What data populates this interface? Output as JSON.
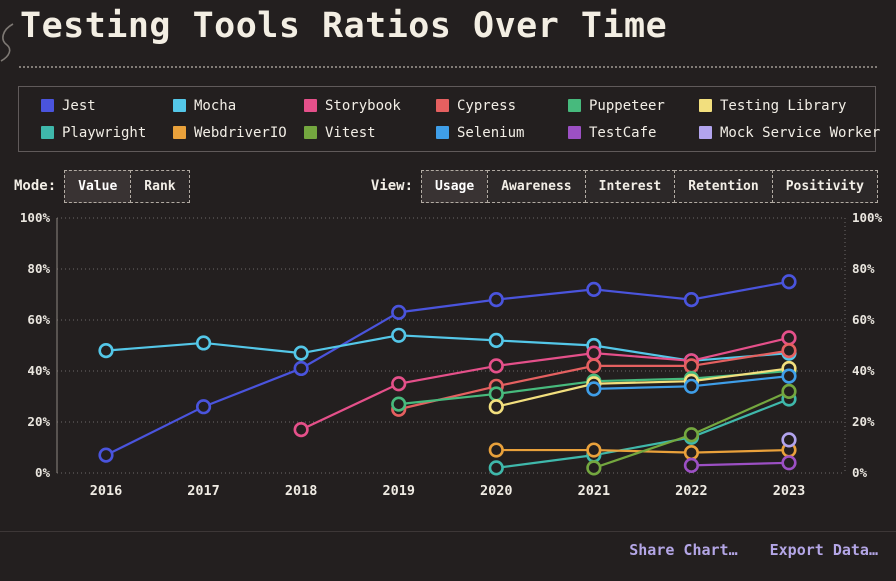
{
  "page": {
    "title": "Testing Tools Ratios Over Time"
  },
  "controls": {
    "mode_label": "Mode:",
    "mode_buttons": [
      "Value",
      "Rank"
    ],
    "mode_active": "Value",
    "view_label": "View:",
    "view_buttons": [
      "Usage",
      "Awareness",
      "Interest",
      "Retention",
      "Positivity"
    ],
    "view_active": "Usage"
  },
  "footer": {
    "share_label": "Share Chart…",
    "export_label": "Export Data…",
    "link_color": "#b4a6e6"
  },
  "chart_data": {
    "type": "line",
    "title": "Testing Tools Ratios Over Time",
    "x": [
      "2016",
      "2017",
      "2018",
      "2019",
      "2020",
      "2021",
      "2022",
      "2023"
    ],
    "y_ticks": [
      0,
      20,
      40,
      60,
      80,
      100
    ],
    "ylim": [
      0,
      100
    ],
    "unit": "%",
    "grid": "dotted-horizontal",
    "dual_y_axis": true,
    "legend_position": "top-box",
    "point_style": "hollow-circle",
    "background_color": "#231f1f",
    "series": [
      {
        "name": "Jest",
        "color": "#4a54dd",
        "values": [
          7,
          26,
          41,
          63,
          68,
          72,
          68,
          75
        ]
      },
      {
        "name": "Mocha",
        "color": "#54c7e8",
        "values": [
          48,
          51,
          47,
          54,
          52,
          50,
          44,
          47
        ]
      },
      {
        "name": "Storybook",
        "color": "#e5508a",
        "values": [
          null,
          null,
          17,
          35,
          42,
          47,
          44,
          53
        ]
      },
      {
        "name": "Cypress",
        "color": "#e56060",
        "values": [
          null,
          null,
          null,
          25,
          34,
          42,
          42,
          48
        ]
      },
      {
        "name": "Puppeteer",
        "color": "#47ba7d",
        "values": [
          null,
          null,
          null,
          27,
          31,
          36,
          37,
          40
        ]
      },
      {
        "name": "Testing Library",
        "color": "#f2df7e",
        "values": [
          null,
          null,
          null,
          null,
          26,
          35,
          36,
          41
        ]
      },
      {
        "name": "Playwright",
        "color": "#3fb8ab",
        "values": [
          null,
          null,
          null,
          null,
          2,
          7,
          14,
          29
        ]
      },
      {
        "name": "WebdriverIO",
        "color": "#e9a13b",
        "values": [
          null,
          null,
          null,
          null,
          9,
          9,
          8,
          9
        ]
      },
      {
        "name": "Vitest",
        "color": "#74a73f",
        "values": [
          null,
          null,
          null,
          null,
          null,
          2,
          15,
          32
        ]
      },
      {
        "name": "Selenium",
        "color": "#3f9ee8",
        "values": [
          null,
          null,
          null,
          null,
          null,
          33,
          34,
          38
        ]
      },
      {
        "name": "TestCafe",
        "color": "#9c50c4",
        "values": [
          null,
          null,
          null,
          null,
          null,
          null,
          3,
          4
        ]
      },
      {
        "name": "Mock Service Worker",
        "color": "#b2a4ee",
        "values": [
          null,
          null,
          null,
          null,
          null,
          null,
          null,
          13
        ]
      }
    ]
  }
}
